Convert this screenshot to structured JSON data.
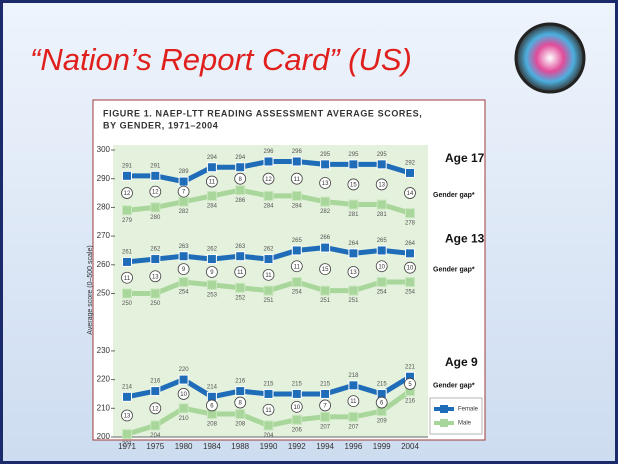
{
  "slide_title": "“Nation’s Report Card” (US)",
  "chart_data": {
    "type": "line",
    "title": [
      "FIGURE 1. NAEP-LTT READING ASSESSMENT AVERAGE SCORES,",
      "BY GENDER, 1971–2004"
    ],
    "y_label": "Average score (0–500 scale)",
    "categories": [
      "1971",
      "1975",
      "1980",
      "1984",
      "1988",
      "1990",
      "1992",
      "1994",
      "1996",
      "1999",
      "2004"
    ],
    "ylim": [
      200,
      300
    ],
    "yticks": [
      200,
      210,
      220,
      230,
      250,
      260,
      270,
      280,
      290,
      300
    ],
    "groups": [
      {
        "label": "Age 17",
        "gap_label": "Gender gap*",
        "gaps": [
          12,
          12,
          7,
          11,
          8,
          12,
          11,
          13,
          15,
          13,
          14
        ],
        "series": [
          {
            "name": "Female",
            "color": "#1f6db8",
            "values": [
              291,
              291,
              289,
              294,
              294,
              296,
              296,
              295,
              295,
              295,
              292
            ]
          },
          {
            "name": "Male",
            "color": "#a9d79b",
            "values": [
              279,
              280,
              282,
              284,
              286,
              284,
              284,
              282,
              281,
              281,
              278
            ]
          }
        ]
      },
      {
        "label": "Age 13",
        "gap_label": "Gender gap*",
        "gaps": [
          11,
          13,
          9,
          9,
          11,
          11,
          11,
          15,
          13,
          10,
          10
        ],
        "series": [
          {
            "name": "Female",
            "color": "#1f6db8",
            "values": [
              261,
              262,
              263,
              262,
              263,
              262,
              265,
              266,
              264,
              265,
              264
            ]
          },
          {
            "name": "Male",
            "color": "#a9d79b",
            "values": [
              250,
              250,
              254,
              253,
              252,
              251,
              254,
              251,
              251,
              254,
              254
            ]
          }
        ]
      },
      {
        "label": "Age 9",
        "gap_label": "Gender gap*",
        "gaps": [
          13,
          12,
          10,
          6,
          8,
          11,
          10,
          7,
          11,
          6,
          5
        ],
        "series": [
          {
            "name": "Female",
            "color": "#1f6db8",
            "values": [
              214,
              216,
              220,
              214,
              216,
              215,
              215,
              215,
              218,
              215,
              221
            ]
          },
          {
            "name": "Male",
            "color": "#a9d79b",
            "values": [
              201,
              204,
              210,
              208,
              208,
              204,
              206,
              207,
              207,
              209,
              216
            ]
          }
        ]
      }
    ]
  }
}
